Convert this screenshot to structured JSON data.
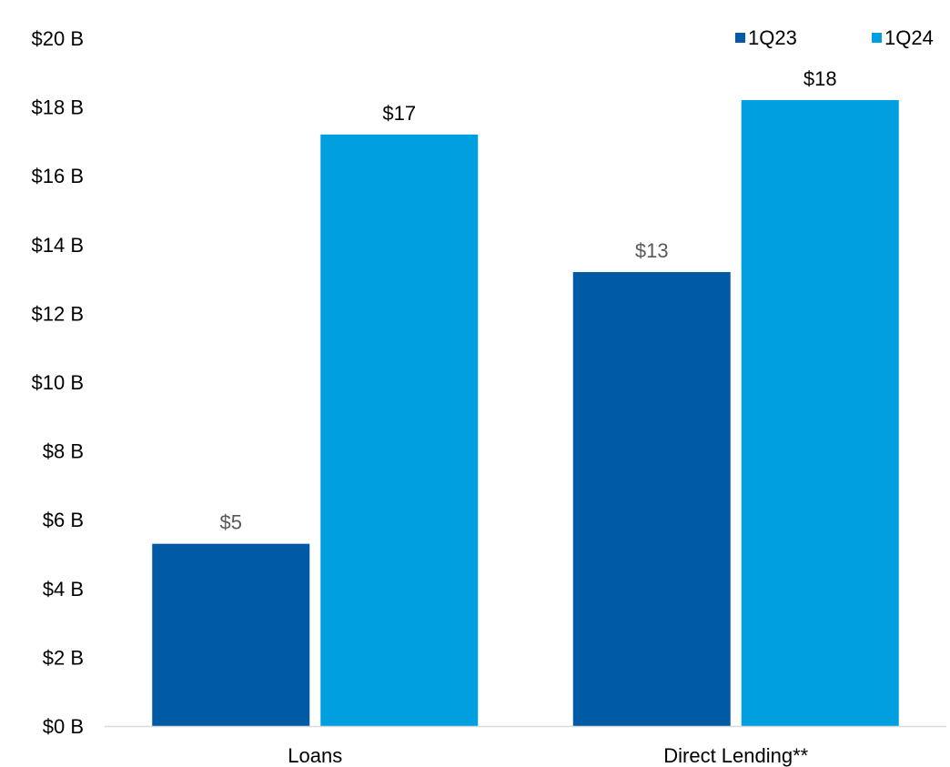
{
  "chart_data": {
    "type": "bar",
    "categories": [
      "Loans",
      "Direct Lending**"
    ],
    "series": [
      {
        "name": "1Q23",
        "values": [
          5.3,
          13.2
        ],
        "color": "#005aa5",
        "label_color": "#595959",
        "data_labels": [
          "$5",
          "$13"
        ]
      },
      {
        "name": "1Q24",
        "values": [
          17.2,
          18.2
        ],
        "color": "#00a0e0",
        "label_color": "#000000",
        "data_labels": [
          "$17",
          "$18"
        ]
      }
    ],
    "y_ticks": [
      {
        "value": 0,
        "label": "$0 B"
      },
      {
        "value": 2,
        "label": "$2 B"
      },
      {
        "value": 4,
        "label": "$4 B"
      },
      {
        "value": 6,
        "label": "$6 B"
      },
      {
        "value": 8,
        "label": "$8 B"
      },
      {
        "value": 10,
        "label": "$10 B"
      },
      {
        "value": 12,
        "label": "$12 B"
      },
      {
        "value": 14,
        "label": "$14 B"
      },
      {
        "value": 16,
        "label": "$16 B"
      },
      {
        "value": 18,
        "label": "$18 B"
      },
      {
        "value": 20,
        "label": "$20 B"
      }
    ],
    "ylim": [
      0,
      20
    ],
    "grid": false,
    "legend": "top-right",
    "axis_color": "#d9d9d9"
  }
}
